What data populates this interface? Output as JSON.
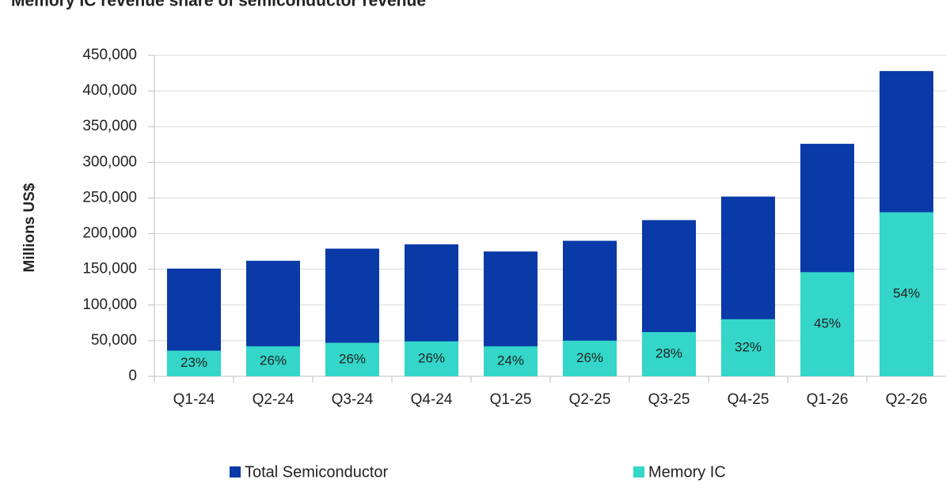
{
  "chart_data": {
    "type": "overlap_bar",
    "title": "Memory IC revenue share of semiconductor revenue",
    "y_label": "Millions US$",
    "categories": [
      "Q1-24",
      "Q2-24",
      "Q3-24",
      "Q4-24",
      "Q1-25",
      "Q2-25",
      "Q3-25",
      "Q4-25",
      "Q1-26",
      "Q2-26"
    ],
    "series": [
      {
        "name": "Total Semiconductor",
        "color": "#0a3aa8",
        "values": [
          151000,
          162000,
          179000,
          185000,
          175000,
          190000,
          219000,
          252000,
          326000,
          428000
        ]
      },
      {
        "name": "Memory IC",
        "color": "#33d6c8",
        "values": [
          36000,
          42000,
          47000,
          49000,
          42000,
          50000,
          62000,
          80000,
          146000,
          230000
        ]
      }
    ],
    "share_labels": {
      "values": [
        23,
        26,
        26,
        26,
        24,
        26,
        28,
        32,
        45,
        54
      ],
      "value_labels": [
        "23%",
        "26%",
        "26%",
        "26%",
        "24%",
        "26%",
        "28%",
        "32%",
        "45%",
        "54%"
      ]
    },
    "ylim": [
      0,
      450000
    ],
    "yticks": [
      0,
      {
        "value": 50000,
        "label": "50,000"
      },
      {
        "value": 100000,
        "label": "100,000"
      },
      {
        "value": 150000,
        "label": "150,000"
      },
      {
        "value": 200000,
        "label": "200,000"
      },
      {
        "value": 250000,
        "label": "250,000"
      },
      {
        "value": 300000,
        "label": "300,000"
      },
      {
        "value": 350000,
        "label": "350,000"
      },
      {
        "value": 400000,
        "label": "400,000"
      },
      {
        "value": 450000,
        "label": "450,000"
      }
    ],
    "grid": true
  }
}
